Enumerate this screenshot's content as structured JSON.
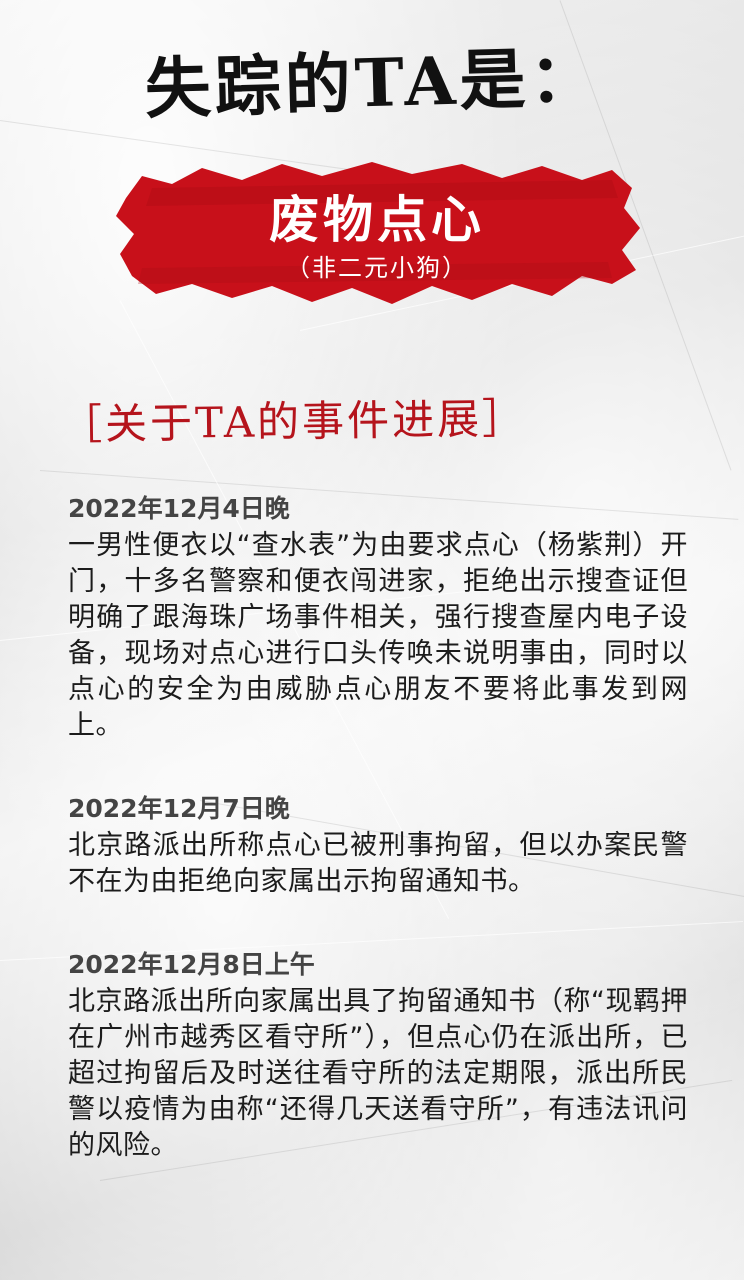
{
  "title": "失踪的TA是：",
  "banner": {
    "name": "废物点心",
    "subtitle": "（非二元小狗）",
    "color": "#c8101a"
  },
  "section_heading": "［关于TA的事件进展］",
  "accent_color": "#b5141c",
  "events": [
    {
      "date": "2022年12月4日晚",
      "text": "一男性便衣以“查水表”为由要求点心（杨紫荆）开门，十多名警察和便衣闯进家，拒绝出示搜查证但明确了跟海珠广场事件相关，强行搜查屋内电子设备，现场对点心进行口头传唤未说明事由，同时以点心的安全为由威胁点心朋友不要将此事发到网上。"
    },
    {
      "date": "2022年12月7日晚",
      "text": "北京路派出所称点心已被刑事拘留，但以办案民警不在为由拒绝向家属出示拘留通知书。"
    },
    {
      "date": "2022年12月8日上午",
      "text": "北京路派出所向家属出具了拘留通知书（称“现羁押在广州市越秀区看守所”），但点心仍在派出所，已超过拘留后及时送往看守所的法定期限，派出所民警以疫情为由称“还得几天送看守所”，有违法讯问的风险。"
    }
  ]
}
